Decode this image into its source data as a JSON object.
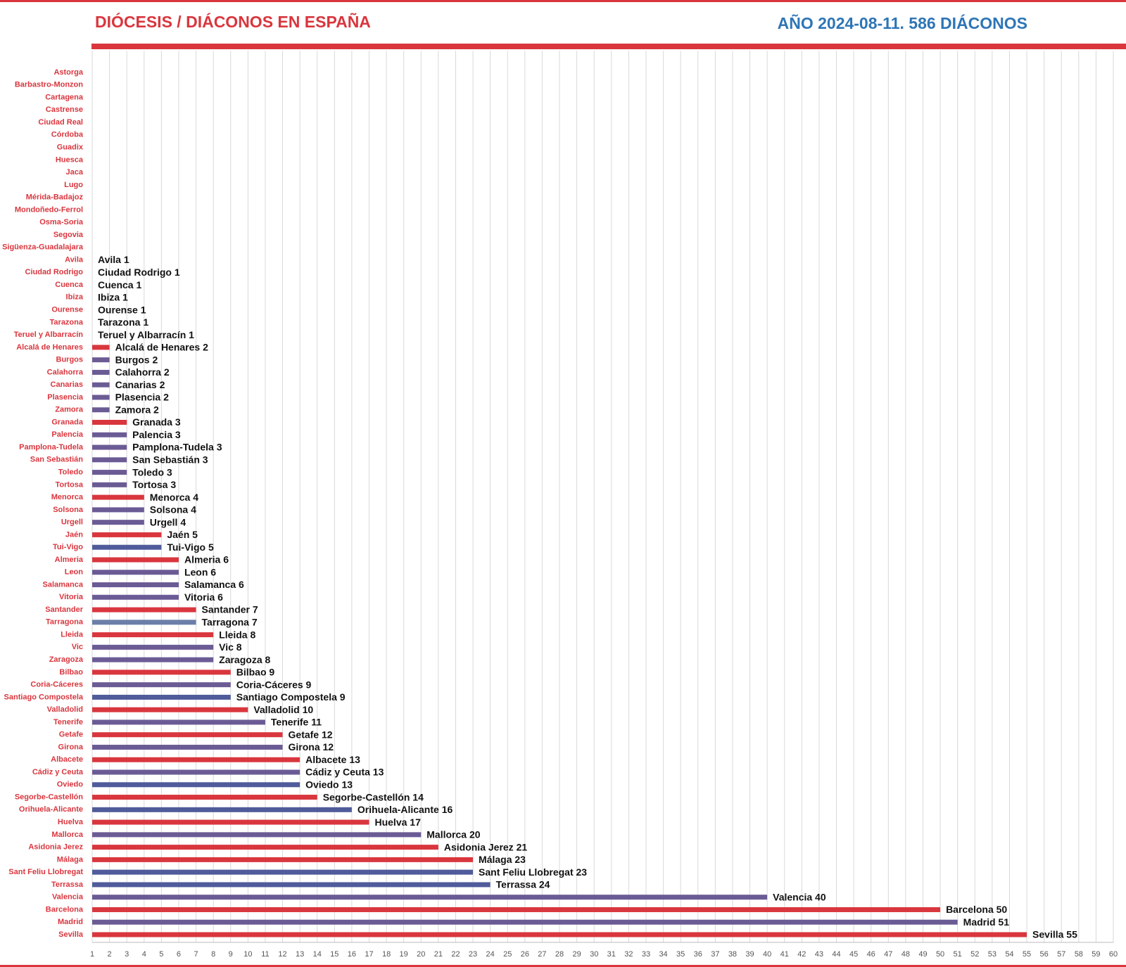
{
  "chart_data": {
    "type": "hbar",
    "title": "DIÓCESIS / DIÁCONOS EN ESPAÑA",
    "subtitle": "AÑO 2024-08-11.  586 DIÁCONOS",
    "categories": [
      "Astorga",
      "Barbastro-Monzon",
      "Cartagena",
      "Castrense",
      "Ciudad Real",
      "Córdoba",
      "Guadix",
      "Huesca",
      "Jaca",
      "Lugo",
      "Mérida-Badajoz",
      "Mondoñedo-Ferrol",
      "Osma-Soria",
      "Segovia",
      "Sigüenza-Guadalajara",
      "Avila",
      "Ciudad Rodrigo",
      "Cuenca",
      "Ibiza",
      "Ourense",
      "Tarazona",
      "Teruel y Albarracín",
      "Alcalá de Henares",
      "Burgos",
      "Calahorra",
      "Canarias",
      "Plasencia",
      "Zamora",
      "Granada",
      "Palencia",
      "Pamplona-Tudela",
      "San Sebastián",
      "Toledo",
      "Tortosa",
      "Menorca",
      "Solsona",
      "Urgell",
      "Jaén",
      "Tui-Vigo",
      "Almeria",
      "Leon",
      "Salamanca",
      "Vitoria",
      "Santander",
      "Tarragona",
      "Lleida",
      "Vic",
      "Zaragoza",
      "Bilbao",
      "Coria-Cáceres",
      "Santiago Compostela",
      "Valladolid",
      "Tenerife",
      "Getafe",
      "Girona",
      "Albacete",
      "Cádiz y Ceuta",
      "Oviedo",
      "Segorbe-Castellón",
      "Orihuela-Alicante",
      "Huelva",
      "Mallorca",
      "Asidonia Jerez",
      "Málaga",
      "Sant Feliu Llobregat",
      "Terrassa",
      "Valencia",
      "Barcelona",
      "Madrid",
      "Sevilla"
    ],
    "values": [
      null,
      null,
      null,
      null,
      null,
      null,
      null,
      null,
      null,
      null,
      null,
      null,
      null,
      null,
      null,
      1,
      1,
      1,
      1,
      1,
      1,
      1,
      2,
      2,
      2,
      2,
      2,
      2,
      3,
      3,
      3,
      3,
      3,
      3,
      4,
      4,
      4,
      5,
      5,
      6,
      6,
      6,
      6,
      7,
      7,
      8,
      8,
      8,
      9,
      9,
      9,
      10,
      11,
      12,
      12,
      13,
      13,
      13,
      14,
      16,
      17,
      20,
      21,
      23,
      23,
      24,
      40,
      50,
      51,
      55
    ],
    "value_labels": [
      null,
      null,
      null,
      null,
      null,
      null,
      null,
      null,
      null,
      null,
      null,
      null,
      null,
      null,
      null,
      "Avila 1",
      "Ciudad Rodrigo 1",
      "Cuenca 1",
      "Ibiza 1",
      "Ourense 1",
      "Tarazona 1",
      "Teruel y Albarracín 1",
      "Alcalá de Henares 2",
      "Burgos 2",
      "Calahorra 2",
      "Canarias 2",
      "Plasencia 2",
      "Zamora 2",
      "Granada 3",
      "Palencia 3",
      "Pamplona-Tudela 3",
      "San Sebastián  3",
      "Toledo 3",
      "Tortosa 3",
      "Menorca 4",
      "Solsona 4",
      "Urgell 4",
      "Jaén 5",
      "Tui-Vigo 5",
      "Almeria  6",
      "Leon 6",
      "Salamanca 6",
      "Vitoria 6",
      "Santander 7",
      "Tarragona 7",
      "Lleida 8",
      "Vic 8",
      "Zaragoza 8",
      "Bilbao 9",
      "Coria-Cáceres 9",
      "Santiago Compostela 9",
      "Valladolid 10",
      "Tenerife  11",
      "Getafe 12",
      "Girona 12",
      "Albacete 13",
      "Cádiz y Ceuta 13",
      "Oviedo 13",
      "Segorbe-Castellón 14",
      "Orihuela-Alicante 16",
      "Huelva 17",
      "Mallorca 20",
      "Asidonia Jerez 21",
      "Málaga 23",
      "Sant Feliu Llobregat 23",
      "Terrassa 24",
      "Valencia  40",
      "Barcelona 50",
      "Madrid 51",
      "Sevilla 55"
    ],
    "colors": [
      null,
      null,
      null,
      null,
      null,
      null,
      null,
      null,
      null,
      null,
      null,
      null,
      null,
      null,
      null,
      "#6b5b95",
      "#6b5b95",
      "#6b5b95",
      "#6b5b95",
      "#6b5b95",
      "#6b5b95",
      "#6b5b95",
      "#d9363e",
      "#6b5b95",
      "#6b5b95",
      "#6b5b95",
      "#6b5b95",
      "#6b5b95",
      "#d9363e",
      "#6b5b95",
      "#6b5b95",
      "#6b5b95",
      "#6b5b95",
      "#6b5b95",
      "#d9363e",
      "#6b5b95",
      "#6b5b95",
      "#d9363e",
      "#4f5b9a",
      "#d9363e",
      "#6b5b95",
      "#6b5b95",
      "#6b5b95",
      "#d9363e",
      "#6b7fa8",
      "#d9363e",
      "#6b5b95",
      "#6b5b95",
      "#d9363e",
      "#6b5b95",
      "#4f5b9a",
      "#d9363e",
      "#6b5b95",
      "#d9363e",
      "#6b5b95",
      "#d9363e",
      "#6b5b95",
      "#4f5b9a",
      "#d9363e",
      "#4f5b9a",
      "#d9363e",
      "#6b5b95",
      "#d9363e",
      "#d9363e",
      "#4f5b9a",
      "#4f5b9a",
      "#6b5b95",
      "#d9363e",
      "#6b5b95",
      "#d9363e"
    ],
    "xlim": [
      1,
      60
    ],
    "xticks": [
      1,
      2,
      3,
      4,
      5,
      6,
      7,
      8,
      9,
      10,
      11,
      12,
      13,
      14,
      15,
      16,
      17,
      18,
      19,
      20,
      21,
      22,
      23,
      24,
      25,
      26,
      27,
      28,
      29,
      30,
      31,
      32,
      33,
      34,
      35,
      36,
      37,
      38,
      39,
      40,
      41,
      42,
      43,
      44,
      45,
      46,
      47,
      48,
      49,
      50,
      51,
      52,
      53,
      54,
      55,
      56,
      57,
      58,
      59,
      60
    ],
    "grid": true
  }
}
